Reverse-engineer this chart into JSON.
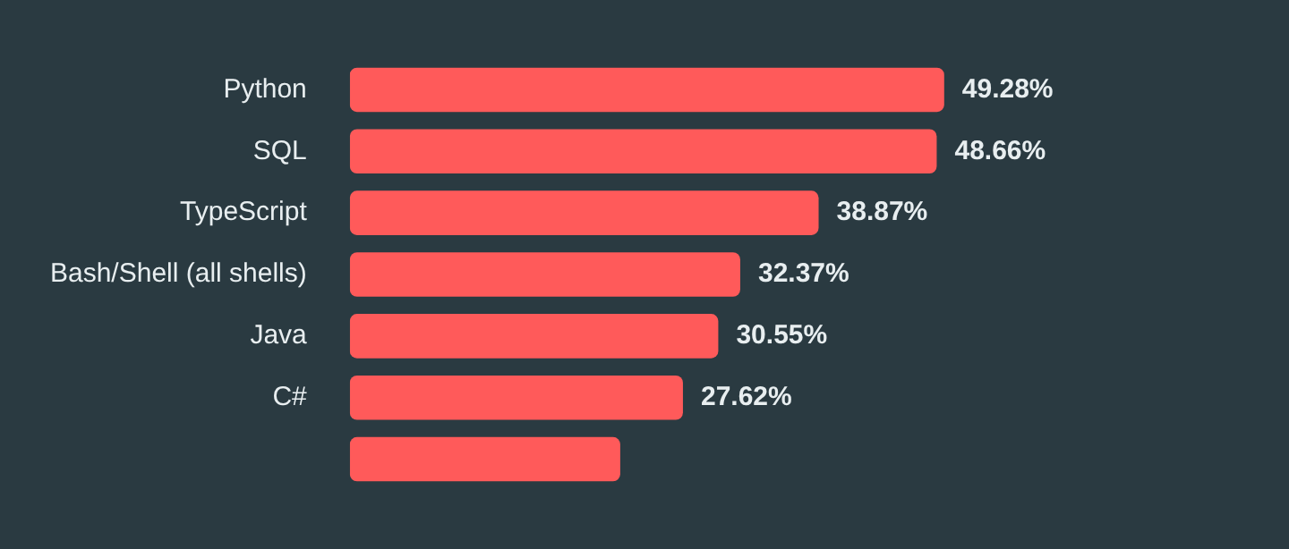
{
  "chart_data": {
    "type": "bar",
    "orientation": "horizontal",
    "categories": [
      "Python",
      "SQL",
      "TypeScript",
      "Bash/Shell (all shells)",
      "Java",
      "C#",
      null
    ],
    "values": [
      49.28,
      48.66,
      38.87,
      32.37,
      30.55,
      27.62,
      22.42
    ],
    "value_labels": [
      "49.28%",
      "48.66%",
      "38.87%",
      "32.37%",
      "30.55%",
      "27.62%",
      null
    ],
    "color": "#ff5a5a",
    "grid": false,
    "legend": false
  }
}
